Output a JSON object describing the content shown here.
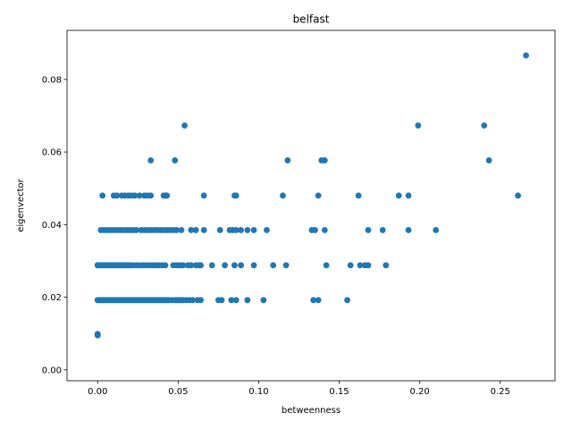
{
  "chart_data": {
    "type": "scatter",
    "title": "belfast",
    "xlabel": "betweenness",
    "ylabel": "eigenvector",
    "xlim": [
      -0.019,
      0.284
    ],
    "ylim": [
      -0.003,
      0.0935
    ],
    "xticks": [
      0.0,
      0.05,
      0.1,
      0.15,
      0.2,
      0.25
    ],
    "xtick_labels": [
      "0.00",
      "0.05",
      "0.10",
      "0.15",
      "0.20",
      "0.25"
    ],
    "yticks": [
      0.0,
      0.02,
      0.04,
      0.06,
      0.08
    ],
    "ytick_labels": [
      "0.00",
      "0.02",
      "0.04",
      "0.06",
      "0.08"
    ],
    "grid": false,
    "legend": "none",
    "marker_color": "#1f77b4",
    "points": [
      [
        0.0,
        0.0095
      ],
      [
        0.0,
        0.0096
      ],
      [
        0.0,
        0.0097
      ],
      [
        0.0,
        0.0098
      ],
      [
        0.0,
        0.0099
      ],
      [
        0.0,
        0.0192
      ],
      [
        0.0,
        0.0288
      ],
      [
        0.0,
        0.0192
      ],
      [
        0.001,
        0.0192
      ],
      [
        0.002,
        0.0192
      ],
      [
        0.003,
        0.0192
      ],
      [
        0.004,
        0.0192
      ],
      [
        0.005,
        0.0192
      ],
      [
        0.006,
        0.0192
      ],
      [
        0.007,
        0.0192
      ],
      [
        0.008,
        0.0192
      ],
      [
        0.009,
        0.0192
      ],
      [
        0.01,
        0.0192
      ],
      [
        0.011,
        0.0192
      ],
      [
        0.012,
        0.0192
      ],
      [
        0.013,
        0.0192
      ],
      [
        0.014,
        0.0192
      ],
      [
        0.015,
        0.0192
      ],
      [
        0.016,
        0.0192
      ],
      [
        0.017,
        0.0192
      ],
      [
        0.018,
        0.0192
      ],
      [
        0.019,
        0.0192
      ],
      [
        0.02,
        0.0192
      ],
      [
        0.021,
        0.0192
      ],
      [
        0.022,
        0.0192
      ],
      [
        0.023,
        0.0192
      ],
      [
        0.024,
        0.0192
      ],
      [
        0.025,
        0.0192
      ],
      [
        0.026,
        0.0192
      ],
      [
        0.027,
        0.0192
      ],
      [
        0.028,
        0.0192
      ],
      [
        0.029,
        0.0192
      ],
      [
        0.03,
        0.0192
      ],
      [
        0.031,
        0.0192
      ],
      [
        0.032,
        0.0192
      ],
      [
        0.033,
        0.0192
      ],
      [
        0.034,
        0.0192
      ],
      [
        0.035,
        0.0192
      ],
      [
        0.036,
        0.0192
      ],
      [
        0.037,
        0.0192
      ],
      [
        0.038,
        0.0192
      ],
      [
        0.039,
        0.0192
      ],
      [
        0.04,
        0.0192
      ],
      [
        0.041,
        0.0192
      ],
      [
        0.042,
        0.0192
      ],
      [
        0.043,
        0.0192
      ],
      [
        0.044,
        0.0192
      ],
      [
        0.046,
        0.0192
      ],
      [
        0.048,
        0.0192
      ],
      [
        0.049,
        0.0192
      ],
      [
        0.05,
        0.0192
      ],
      [
        0.051,
        0.0192
      ],
      [
        0.052,
        0.0192
      ],
      [
        0.053,
        0.0192
      ],
      [
        0.055,
        0.0192
      ],
      [
        0.057,
        0.0192
      ],
      [
        0.059,
        0.0192
      ],
      [
        0.062,
        0.0192
      ],
      [
        0.064,
        0.0192
      ],
      [
        0.075,
        0.0192
      ],
      [
        0.077,
        0.0192
      ],
      [
        0.083,
        0.0192
      ],
      [
        0.086,
        0.0192
      ],
      [
        0.093,
        0.0192
      ],
      [
        0.103,
        0.0192
      ],
      [
        0.134,
        0.0192
      ],
      [
        0.137,
        0.0192
      ],
      [
        0.155,
        0.0192
      ],
      [
        0.0,
        0.0288
      ],
      [
        0.001,
        0.0288
      ],
      [
        0.002,
        0.0288
      ],
      [
        0.003,
        0.0288
      ],
      [
        0.004,
        0.0288
      ],
      [
        0.005,
        0.0288
      ],
      [
        0.006,
        0.0288
      ],
      [
        0.007,
        0.0288
      ],
      [
        0.008,
        0.0288
      ],
      [
        0.009,
        0.0288
      ],
      [
        0.01,
        0.0288
      ],
      [
        0.011,
        0.0288
      ],
      [
        0.012,
        0.0288
      ],
      [
        0.013,
        0.0288
      ],
      [
        0.014,
        0.0288
      ],
      [
        0.015,
        0.0288
      ],
      [
        0.016,
        0.0288
      ],
      [
        0.017,
        0.0288
      ],
      [
        0.018,
        0.0288
      ],
      [
        0.019,
        0.0288
      ],
      [
        0.02,
        0.0288
      ],
      [
        0.022,
        0.0288
      ],
      [
        0.024,
        0.0288
      ],
      [
        0.026,
        0.0288
      ],
      [
        0.028,
        0.0288
      ],
      [
        0.03,
        0.0288
      ],
      [
        0.032,
        0.0288
      ],
      [
        0.034,
        0.0288
      ],
      [
        0.036,
        0.0288
      ],
      [
        0.038,
        0.0288
      ],
      [
        0.04,
        0.0288
      ],
      [
        0.042,
        0.0288
      ],
      [
        0.047,
        0.0288
      ],
      [
        0.049,
        0.0288
      ],
      [
        0.051,
        0.0288
      ],
      [
        0.053,
        0.0288
      ],
      [
        0.056,
        0.0288
      ],
      [
        0.058,
        0.0288
      ],
      [
        0.061,
        0.0288
      ],
      [
        0.063,
        0.0288
      ],
      [
        0.064,
        0.0288
      ],
      [
        0.071,
        0.0288
      ],
      [
        0.079,
        0.0288
      ],
      [
        0.085,
        0.0288
      ],
      [
        0.089,
        0.0288
      ],
      [
        0.097,
        0.0288
      ],
      [
        0.109,
        0.0288
      ],
      [
        0.117,
        0.0288
      ],
      [
        0.142,
        0.0288
      ],
      [
        0.157,
        0.0288
      ],
      [
        0.163,
        0.0288
      ],
      [
        0.166,
        0.0288
      ],
      [
        0.168,
        0.0288
      ],
      [
        0.179,
        0.0288
      ],
      [
        0.002,
        0.0385
      ],
      [
        0.004,
        0.0385
      ],
      [
        0.006,
        0.0385
      ],
      [
        0.008,
        0.0385
      ],
      [
        0.01,
        0.0385
      ],
      [
        0.012,
        0.0385
      ],
      [
        0.014,
        0.0385
      ],
      [
        0.016,
        0.0385
      ],
      [
        0.018,
        0.0385
      ],
      [
        0.02,
        0.0385
      ],
      [
        0.022,
        0.0385
      ],
      [
        0.024,
        0.0385
      ],
      [
        0.027,
        0.0385
      ],
      [
        0.029,
        0.0385
      ],
      [
        0.031,
        0.0385
      ],
      [
        0.033,
        0.0385
      ],
      [
        0.035,
        0.0385
      ],
      [
        0.037,
        0.0385
      ],
      [
        0.039,
        0.0385
      ],
      [
        0.041,
        0.0385
      ],
      [
        0.043,
        0.0385
      ],
      [
        0.045,
        0.0385
      ],
      [
        0.047,
        0.0385
      ],
      [
        0.049,
        0.0385
      ],
      [
        0.052,
        0.0385
      ],
      [
        0.058,
        0.0385
      ],
      [
        0.061,
        0.0385
      ],
      [
        0.066,
        0.0385
      ],
      [
        0.076,
        0.0385
      ],
      [
        0.082,
        0.0385
      ],
      [
        0.084,
        0.0385
      ],
      [
        0.086,
        0.0385
      ],
      [
        0.089,
        0.0385
      ],
      [
        0.093,
        0.0385
      ],
      [
        0.097,
        0.0385
      ],
      [
        0.105,
        0.0385
      ],
      [
        0.133,
        0.0385
      ],
      [
        0.135,
        0.0385
      ],
      [
        0.141,
        0.0385
      ],
      [
        0.168,
        0.0385
      ],
      [
        0.177,
        0.0385
      ],
      [
        0.193,
        0.0385
      ],
      [
        0.21,
        0.0385
      ],
      [
        0.003,
        0.048
      ],
      [
        0.01,
        0.048
      ],
      [
        0.012,
        0.048
      ],
      [
        0.015,
        0.048
      ],
      [
        0.017,
        0.048
      ],
      [
        0.019,
        0.048
      ],
      [
        0.021,
        0.048
      ],
      [
        0.023,
        0.048
      ],
      [
        0.026,
        0.048
      ],
      [
        0.029,
        0.048
      ],
      [
        0.031,
        0.048
      ],
      [
        0.033,
        0.048
      ],
      [
        0.041,
        0.048
      ],
      [
        0.042,
        0.048
      ],
      [
        0.043,
        0.048
      ],
      [
        0.066,
        0.048
      ],
      [
        0.085,
        0.048
      ],
      [
        0.086,
        0.048
      ],
      [
        0.115,
        0.048
      ],
      [
        0.137,
        0.048
      ],
      [
        0.162,
        0.048
      ],
      [
        0.187,
        0.048
      ],
      [
        0.193,
        0.048
      ],
      [
        0.261,
        0.048
      ],
      [
        0.033,
        0.0577
      ],
      [
        0.048,
        0.0577
      ],
      [
        0.118,
        0.0577
      ],
      [
        0.139,
        0.0577
      ],
      [
        0.141,
        0.0577
      ],
      [
        0.243,
        0.0577
      ],
      [
        0.054,
        0.0673
      ],
      [
        0.199,
        0.0673
      ],
      [
        0.24,
        0.0673
      ],
      [
        0.266,
        0.0866
      ]
    ]
  }
}
